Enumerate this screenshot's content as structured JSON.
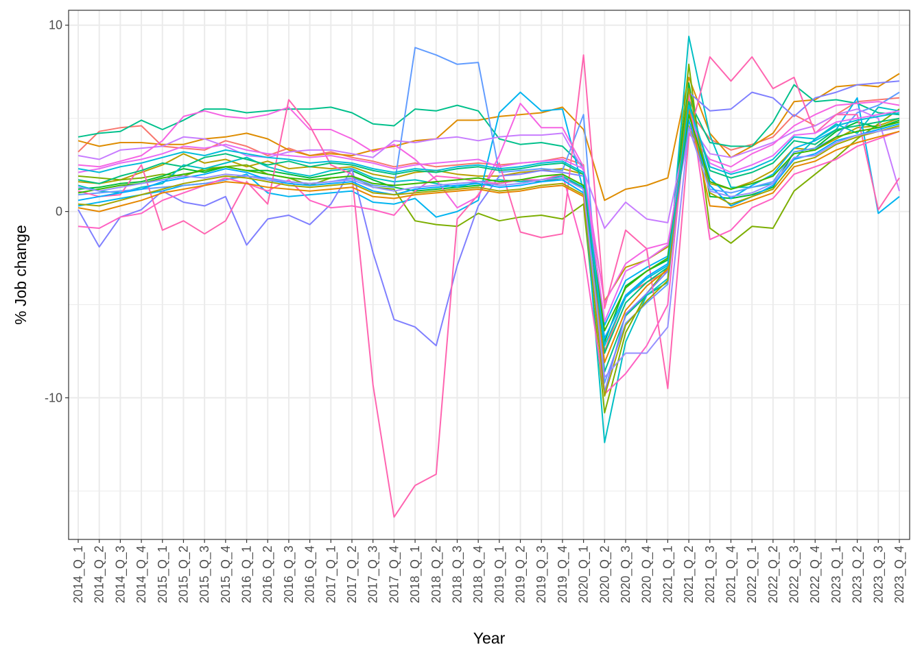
{
  "chart_data": {
    "type": "line",
    "xlabel": "Year",
    "ylabel": "% Job change",
    "ylim": [
      -17.6,
      10.8
    ],
    "yticks": [
      10,
      0,
      -10
    ],
    "ytick_labels": [
      "10",
      "0",
      "-10"
    ],
    "grid": true,
    "legend": "none",
    "categories": [
      "2014_Q_1",
      "2014_Q_2",
      "2014_Q_3",
      "2014_Q_4",
      "2015_Q_1",
      "2015_Q_2",
      "2015_Q_3",
      "2015_Q_4",
      "2016_Q_1",
      "2016_Q_2",
      "2016_Q_3",
      "2016_Q_4",
      "2017_Q_1",
      "2017_Q_2",
      "2017_Q_3",
      "2017_Q_4",
      "2018_Q_1",
      "2018_Q_2",
      "2018_Q_3",
      "2018_Q_4",
      "2019_Q_1",
      "2019_Q_2",
      "2019_Q_3",
      "2019_Q_4",
      "2020_Q_1",
      "2020_Q_2",
      "2020_Q_3",
      "2020_Q_4",
      "2021_Q_1",
      "2021_Q_2",
      "2021_Q_3",
      "2021_Q_4",
      "2022_Q_1",
      "2022_Q_2",
      "2022_Q_3",
      "2022_Q_4",
      "2023_Q_1",
      "2023_Q_2",
      "2023_Q_3",
      "2023_Q_4"
    ],
    "series": [
      {
        "color": "#F8766D",
        "values": [
          3.2,
          4.3,
          4.5,
          4.6,
          3.5,
          3.4,
          3.3,
          3.8,
          3.5,
          3.0,
          3.4,
          3.0,
          3.2,
          2.9,
          2.7,
          2.4,
          2.6,
          2.4,
          2.5,
          2.6,
          2.5,
          2.6,
          2.7,
          2.9,
          2.5,
          -7.5,
          -4.5,
          -3.8,
          -3.2,
          5.4,
          3.9,
          3.3,
          3.6,
          4.0,
          5.2,
          4.6,
          5.2,
          5.9,
          6.0,
          6.1
        ]
      },
      {
        "color": "#DE8C00",
        "values": [
          3.8,
          3.5,
          3.7,
          3.7,
          3.6,
          3.6,
          3.9,
          4.0,
          4.2,
          3.9,
          3.3,
          3.0,
          3.1,
          3.0,
          3.3,
          3.5,
          3.8,
          3.9,
          4.9,
          4.9,
          5.1,
          5.2,
          5.3,
          5.6,
          4.4,
          0.6,
          1.2,
          1.4,
          1.8,
          7.2,
          4.2,
          2.9,
          3.5,
          4.2,
          5.9,
          6.0,
          6.7,
          6.8,
          6.7,
          7.4
        ]
      },
      {
        "color": "#B79F00",
        "values": [
          1.6,
          1.5,
          1.7,
          2.1,
          2.5,
          3.1,
          2.6,
          2.8,
          2.4,
          2.7,
          2.3,
          2.4,
          2.3,
          2.4,
          2.0,
          1.8,
          2.1,
          2.2,
          2.0,
          1.9,
          1.9,
          2.1,
          2.2,
          2.3,
          2.0,
          -4.8,
          -3.0,
          -2.6,
          -1.9,
          4.6,
          1.5,
          1.2,
          1.6,
          2.2,
          3.4,
          3.3,
          3.9,
          4.5,
          4.6,
          5.0
        ]
      },
      {
        "color": "#7CAE00",
        "values": [
          1.9,
          1.8,
          1.7,
          1.8,
          2.0,
          1.9,
          2.3,
          2.4,
          2.5,
          2.0,
          1.8,
          1.4,
          1.8,
          1.9,
          1.3,
          1.2,
          -0.5,
          -0.7,
          -0.8,
          -0.1,
          -0.5,
          -0.3,
          -0.2,
          -0.4,
          0.4,
          -10.8,
          -6.5,
          -4.4,
          -3.0,
          7.9,
          -0.9,
          -1.7,
          -0.8,
          -0.9,
          1.1,
          2.0,
          2.9,
          3.9,
          4.7,
          5.5
        ]
      },
      {
        "color": "#00BA38",
        "values": [
          1.2,
          1.3,
          1.5,
          1.6,
          1.9,
          2.3,
          2.1,
          2.4,
          2.2,
          2.2,
          2.0,
          1.8,
          2.0,
          2.2,
          1.7,
          1.3,
          1.1,
          1.2,
          1.3,
          1.4,
          1.5,
          1.7,
          1.6,
          1.8,
          1.3,
          -7.0,
          -4.0,
          -3.2,
          -2.6,
          6.9,
          0.8,
          0.7,
          0.9,
          1.3,
          3.2,
          3.4,
          4.3,
          4.8,
          4.5,
          4.9
        ]
      },
      {
        "color": "#00C08B",
        "values": [
          4.0,
          4.2,
          4.3,
          4.9,
          4.4,
          4.9,
          5.5,
          5.5,
          5.3,
          5.4,
          5.5,
          5.5,
          5.6,
          5.3,
          4.7,
          4.6,
          5.5,
          5.4,
          5.7,
          5.4,
          3.9,
          3.6,
          3.7,
          3.5,
          2.4,
          -8.6,
          -5.6,
          -4.5,
          -3.8,
          6.0,
          3.7,
          3.5,
          3.5,
          4.8,
          6.8,
          5.9,
          6.0,
          5.8,
          5.3,
          5.2
        ]
      },
      {
        "color": "#00BFC4",
        "values": [
          1.4,
          1.1,
          1.0,
          1.3,
          1.5,
          2.5,
          2.3,
          2.6,
          2.9,
          2.4,
          2.1,
          1.9,
          2.2,
          2.3,
          1.8,
          1.6,
          1.7,
          1.5,
          1.3,
          1.6,
          1.7,
          1.6,
          1.7,
          1.9,
          1.3,
          -12.4,
          -7.0,
          -4.5,
          -3.6,
          9.4,
          4.1,
          1.3,
          1.3,
          1.5,
          2.8,
          3.9,
          4.7,
          4.2,
          5.6,
          5.4
        ]
      },
      {
        "color": "#00B4F0",
        "values": [
          0.3,
          0.5,
          0.7,
          0.9,
          1.1,
          1.4,
          1.5,
          1.7,
          2.0,
          1.0,
          0.8,
          0.9,
          1.0,
          1.1,
          0.5,
          0.4,
          0.7,
          -0.3,
          0.0,
          0.6,
          5.3,
          6.4,
          5.4,
          5.5,
          1.1,
          -6.1,
          -3.7,
          -3.0,
          -2.4,
          5.6,
          1.8,
          0.7,
          1.4,
          2.0,
          3.4,
          3.8,
          4.4,
          6.1,
          -0.1,
          0.8
        ]
      },
      {
        "color": "#619CFF",
        "values": [
          0.9,
          1.0,
          1.1,
          1.2,
          1.3,
          1.4,
          1.5,
          1.7,
          1.9,
          1.8,
          1.6,
          1.5,
          1.6,
          1.8,
          1.4,
          1.3,
          8.8,
          8.4,
          7.9,
          8.0,
          2.1,
          2.2,
          2.3,
          2.2,
          5.2,
          -9.2,
          -6.0,
          -4.9,
          -3.9,
          5.8,
          1.2,
          1.0,
          1.3,
          1.6,
          3.2,
          3.4,
          4.0,
          5.3,
          5.7,
          6.4
        ]
      },
      {
        "color": "#7F7FFF",
        "values": [
          0.1,
          -1.9,
          -0.3,
          0.1,
          1.1,
          0.5,
          0.3,
          0.8,
          -1.8,
          -0.4,
          -0.2,
          -0.7,
          0.4,
          2.3,
          -2.2,
          -5.8,
          -6.2,
          -7.2,
          -2.9,
          0.3,
          1.9,
          2.0,
          2.2,
          2.1,
          1.9,
          -9.7,
          -5.5,
          -4.4,
          -3.2,
          6.4,
          5.4,
          5.5,
          6.4,
          6.1,
          5.1,
          6.1,
          6.4,
          6.8,
          6.9,
          7.0
        ]
      },
      {
        "color": "#C77CFF",
        "values": [
          3.0,
          2.8,
          3.3,
          3.4,
          3.5,
          4.0,
          3.9,
          3.5,
          3.0,
          2.9,
          3.2,
          3.3,
          3.3,
          3.1,
          2.9,
          3.8,
          3.7,
          3.9,
          4.0,
          3.8,
          4.0,
          4.1,
          4.1,
          4.2,
          2.2,
          -0.9,
          0.5,
          -0.4,
          -0.6,
          4.8,
          3.1,
          2.9,
          3.3,
          3.7,
          4.3,
          4.6,
          5.2,
          5.5,
          5.0,
          1.1
        ]
      },
      {
        "color": "#F564E3",
        "values": [
          2.5,
          2.4,
          2.7,
          3.0,
          3.8,
          5.1,
          5.4,
          5.1,
          5.0,
          5.2,
          5.6,
          4.4,
          4.4,
          3.9,
          3.2,
          3.6,
          2.8,
          1.7,
          0.2,
          0.8,
          3.0,
          5.8,
          4.5,
          4.5,
          2.4,
          -4.9,
          -2.8,
          -2.0,
          -1.7,
          4.2,
          2.8,
          2.4,
          3.1,
          3.6,
          4.6,
          5.2,
          5.7,
          5.8,
          5.9,
          5.7
        ]
      },
      {
        "color": "#FF64B0",
        "values": [
          1.1,
          0.8,
          0.9,
          2.5,
          -1.0,
          -0.5,
          -1.2,
          -0.5,
          1.6,
          0.4,
          6.0,
          4.6,
          2.5,
          2.0,
          -9.3,
          -16.4,
          -14.7,
          -14.1,
          -0.4,
          0.9,
          2.6,
          -1.1,
          -1.4,
          -1.2,
          8.4,
          -5.2,
          -1.0,
          -2.0,
          -9.5,
          4.0,
          8.3,
          7.0,
          8.3,
          6.6,
          7.2,
          4.2,
          5.2,
          5.2,
          0.1,
          1.8
        ]
      },
      {
        "color": "#FF61C3",
        "values": [
          -0.8,
          -0.9,
          -0.3,
          -0.1,
          0.6,
          1.0,
          1.4,
          1.8,
          1.5,
          1.1,
          1.7,
          0.6,
          0.2,
          0.3,
          0.1,
          -0.2,
          1.1,
          1.9,
          1.8,
          1.6,
          1.5,
          1.7,
          1.7,
          2.0,
          -2.1,
          -9.8,
          -8.7,
          -7.2,
          -5.0,
          6.2,
          -1.5,
          -1.0,
          0.2,
          0.7,
          2.0,
          2.4,
          2.8,
          3.5,
          3.9,
          4.3
        ]
      },
      {
        "color": "#E76BF3",
        "values": [
          2.1,
          2.3,
          2.6,
          2.8,
          3.1,
          3.5,
          3.4,
          3.6,
          3.3,
          3.1,
          3.0,
          2.9,
          3.0,
          2.8,
          2.6,
          2.3,
          2.5,
          2.6,
          2.7,
          2.8,
          2.4,
          2.6,
          2.7,
          2.8,
          2.3,
          -5.9,
          -3.2,
          -2.6,
          -1.8,
          5.1,
          2.6,
          2.1,
          2.5,
          3.0,
          4.1,
          4.2,
          4.8,
          5.0,
          5.2,
          5.4
        ]
      },
      {
        "color": "#00A9FF",
        "values": [
          0.6,
          0.8,
          1.0,
          1.2,
          1.6,
          1.8,
          2.0,
          2.3,
          2.1,
          1.7,
          1.5,
          1.4,
          1.5,
          1.6,
          1.1,
          0.9,
          1.2,
          1.3,
          1.4,
          1.5,
          1.3,
          1.4,
          1.6,
          1.7,
          1.0,
          -6.8,
          -4.5,
          -3.5,
          -2.8,
          4.9,
          1.4,
          0.3,
          0.8,
          1.4,
          2.8,
          3.1,
          3.8,
          4.1,
          4.4,
          4.7
        ]
      },
      {
        "color": "#00BF7D",
        "values": [
          1.7,
          1.5,
          1.9,
          2.2,
          2.6,
          2.4,
          2.9,
          3.1,
          2.8,
          2.5,
          2.7,
          2.4,
          2.6,
          2.5,
          2.2,
          2.0,
          2.2,
          2.1,
          2.3,
          2.4,
          2.2,
          2.3,
          2.5,
          2.6,
          2.0,
          -7.6,
          -4.9,
          -3.8,
          -3.0,
          5.9,
          2.2,
          1.8,
          2.1,
          2.6,
          3.8,
          3.6,
          4.4,
          4.6,
          4.8,
          5.0
        ]
      },
      {
        "color": "#A3A500",
        "values": [
          0.4,
          0.3,
          0.6,
          0.9,
          1.2,
          1.5,
          1.7,
          1.9,
          1.8,
          1.6,
          1.4,
          1.3,
          1.4,
          1.5,
          1.0,
          0.9,
          1.0,
          1.1,
          1.2,
          1.3,
          1.1,
          1.2,
          1.4,
          1.5,
          0.9,
          -9.9,
          -6.1,
          -4.8,
          -3.7,
          6.6,
          1.0,
          0.4,
          0.8,
          1.2,
          2.6,
          2.9,
          3.6,
          4.0,
          4.3,
          4.6
        ]
      },
      {
        "color": "#E58700",
        "values": [
          0.2,
          0.0,
          0.3,
          0.6,
          1.0,
          1.2,
          1.4,
          1.6,
          1.5,
          1.3,
          1.2,
          1.1,
          1.2,
          1.3,
          0.8,
          0.7,
          0.9,
          1.0,
          1.1,
          1.2,
          1.0,
          1.1,
          1.3,
          1.4,
          0.8,
          -8.1,
          -5.3,
          -4.0,
          -3.1,
          5.5,
          0.3,
          0.2,
          0.6,
          1.0,
          2.4,
          2.7,
          3.3,
          3.7,
          4.0,
          4.3
        ]
      },
      {
        "color": "#39B600",
        "values": [
          1.0,
          1.2,
          1.4,
          1.5,
          1.8,
          2.0,
          2.2,
          2.4,
          2.2,
          2.0,
          1.8,
          1.7,
          1.8,
          1.9,
          1.5,
          1.4,
          1.5,
          1.6,
          1.7,
          1.8,
          1.6,
          1.7,
          1.9,
          2.0,
          1.4,
          -6.4,
          -4.1,
          -3.2,
          -2.5,
          5.2,
          1.6,
          1.2,
          1.5,
          1.9,
          3.1,
          3.3,
          4.0,
          4.3,
          4.5,
          4.8
        ]
      },
      {
        "color": "#00BCD8",
        "values": [
          2.3,
          2.1,
          2.4,
          2.6,
          2.9,
          3.2,
          3.0,
          3.3,
          3.1,
          2.9,
          2.8,
          2.6,
          2.7,
          2.6,
          2.3,
          2.1,
          2.3,
          2.2,
          2.4,
          2.5,
          2.3,
          2.4,
          2.6,
          2.7,
          2.1,
          -7.2,
          -4.6,
          -3.6,
          -2.9,
          5.7,
          2.4,
          2.0,
          2.3,
          2.8,
          4.0,
          3.9,
          4.6,
          4.9,
          5.1,
          5.3
        ]
      },
      {
        "color": "#9590FF",
        "values": [
          1.3,
          1.1,
          1.3,
          1.5,
          1.7,
          1.9,
          1.8,
          2.0,
          1.9,
          1.7,
          1.6,
          1.5,
          1.6,
          1.7,
          1.3,
          1.1,
          1.3,
          1.4,
          1.5,
          1.6,
          1.4,
          1.5,
          1.7,
          1.8,
          1.2,
          -8.9,
          -7.6,
          -7.6,
          -6.2,
          4.5,
          1.1,
          0.8,
          1.0,
          1.5,
          2.9,
          3.0,
          3.7,
          4.1,
          4.3,
          4.5
        ]
      }
    ]
  }
}
